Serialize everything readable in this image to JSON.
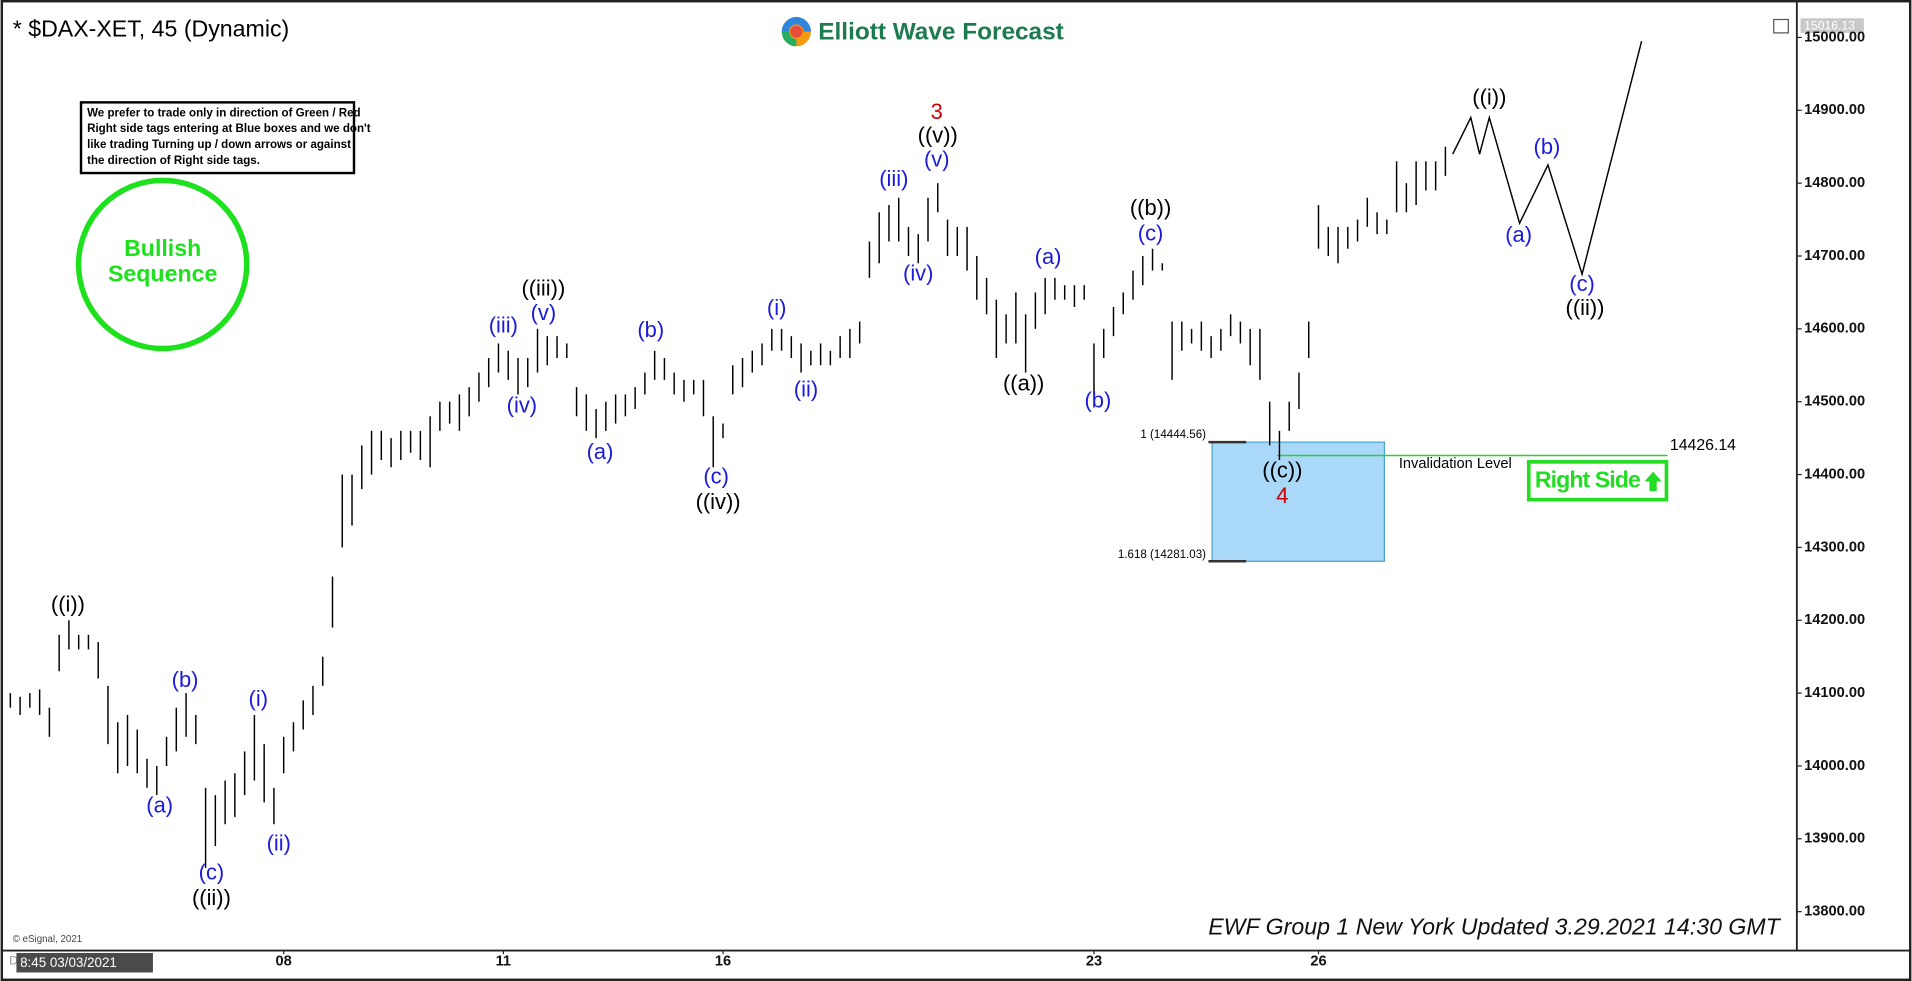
{
  "chart_data": {
    "type": "ohlc",
    "title": "* $DAX-XET, 45 (Dynamic)",
    "logo": "Elliott Wave Forecast",
    "note_lines": [
      "We prefer to trade only in direction of Green / Red",
      "Right side tags entering at Blue boxes and we don't",
      "like trading Turning up / down arrows or against",
      "the direction of Right side tags."
    ],
    "badge_lines": [
      "Bullish",
      "Sequence"
    ],
    "right_side": "Right Side",
    "footer": "EWF Group 1 New York Updated 3.29.2021 14:30 GMT",
    "copyright": "© eSignal, 2021",
    "cursor_label": "8:45 03/03/2021",
    "mode_label": "Dyn",
    "last_price": "15016.13",
    "color": "#000000",
    "high": [
      14100,
      14095,
      14100,
      14105,
      14080,
      14180,
      14200,
      14180,
      14180,
      14170,
      14110,
      14060,
      14070,
      14050,
      14010,
      14000,
      14040,
      14080,
      14100,
      14070,
      13970,
      13960,
      13980,
      13990,
      14020,
      14070,
      14030,
      13970,
      14040,
      14060,
      14090,
      14110,
      14150,
      14260,
      14400,
      14400,
      14440,
      14460,
      14460,
      14450,
      14460,
      14460,
      14460,
      14480,
      14500,
      14500,
      14510,
      14520,
      14540,
      14560,
      14580,
      14570,
      14560,
      14560,
      14600,
      14590,
      14590,
      14580,
      14520,
      14510,
      14490,
      14500,
      14510,
      14510,
      14520,
      14540,
      14570,
      14560,
      14540,
      14530,
      14530,
      14530,
      14480,
      14470,
      14550,
      14560,
      14570,
      14580,
      14600,
      14600,
      14590,
      14580,
      14570,
      14580,
      14570,
      14590,
      14600,
      14610,
      14720,
      14760,
      14770,
      14780,
      14740,
      14730,
      14780,
      14800,
      14750,
      14740,
      14740,
      14700,
      14670,
      14640,
      14620,
      14650,
      14620,
      14650,
      14670,
      14670,
      14660,
      14660,
      14660,
      14580,
      14600,
      14630,
      14650,
      14680,
      14700,
      14710,
      14690,
      14610,
      14610,
      14600,
      14610,
      14590,
      14600,
      14620,
      14610,
      14600,
      14600,
      14500,
      14460,
      14500,
      14540,
      14610,
      14770,
      14740,
      14740,
      14740,
      14750,
      14780,
      14760,
      14750,
      14830,
      14800,
      14830,
      14830,
      14830,
      14850
    ],
    "low": [
      14080,
      14070,
      14080,
      14070,
      14040,
      14130,
      14160,
      14160,
      14160,
      14120,
      14030,
      13990,
      14000,
      13990,
      13970,
      13960,
      14000,
      14020,
      14040,
      14030,
      13860,
      13890,
      13920,
      13930,
      13960,
      13980,
      13950,
      13920,
      13990,
      14020,
      14050,
      14070,
      14110,
      14190,
      14300,
      14330,
      14380,
      14400,
      14420,
      14410,
      14420,
      14430,
      14420,
      14410,
      14460,
      14470,
      14460,
      14480,
      14500,
      14520,
      14540,
      14530,
      14510,
      14520,
      14540,
      14550,
      14560,
      14560,
      14480,
      14460,
      14450,
      14460,
      14470,
      14480,
      14490,
      14510,
      14530,
      14530,
      14510,
      14500,
      14510,
      14480,
      14410,
      14450,
      14510,
      14520,
      14540,
      14550,
      14570,
      14570,
      14560,
      14540,
      14550,
      14550,
      14550,
      14560,
      14560,
      14580,
      14670,
      14690,
      14720,
      14720,
      14700,
      14690,
      14720,
      14760,
      14700,
      14700,
      14680,
      14640,
      14620,
      14560,
      14580,
      14580,
      14540,
      14600,
      14620,
      14640,
      14640,
      14630,
      14640,
      14510,
      14560,
      14590,
      14620,
      14640,
      14660,
      14680,
      14680,
      14530,
      14570,
      14580,
      14570,
      14560,
      14570,
      14590,
      14580,
      14550,
      14530,
      14440,
      14420,
      14460,
      14490,
      14560,
      14710,
      14700,
      14690,
      14710,
      14720,
      14740,
      14730,
      14730,
      14760,
      14760,
      14770,
      14790,
      14790,
      14810
    ],
    "projection": {
      "color": "#000000",
      "x": [
        147.75,
        149.6,
        150.5,
        151.5,
        154.6,
        157.5,
        161,
        167.1
      ],
      "values": [
        14840,
        14890,
        14840,
        14890,
        14745,
        14825,
        14675,
        14995
      ]
    },
    "xlim": [
      0,
      183
    ],
    "ylim": [
      13750,
      15028
    ],
    "xticks": [
      {
        "value": 28,
        "label": "08"
      },
      {
        "value": 50.5,
        "label": "11"
      },
      {
        "value": 73,
        "label": "16"
      },
      {
        "value": 111,
        "label": "23"
      },
      {
        "value": 134,
        "label": "26"
      }
    ],
    "yticks": [
      {
        "value": 13800,
        "label": "13800.00"
      },
      {
        "value": 13900,
        "label": "13900.00"
      },
      {
        "value": 14000,
        "label": "14000.00"
      },
      {
        "value": 14100,
        "label": "14100.00"
      },
      {
        "value": 14200,
        "label": "14200.00"
      },
      {
        "value": 14300,
        "label": "14300.00"
      },
      {
        "value": 14400,
        "label": "14400.00"
      },
      {
        "value": 14500,
        "label": "14500.00"
      },
      {
        "value": 14600,
        "label": "14600.00"
      },
      {
        "value": 14700,
        "label": "14700.00"
      },
      {
        "value": 14800,
        "label": "14800.00"
      },
      {
        "value": 14900,
        "label": "14900.00"
      },
      {
        "value": 15000,
        "label": "15000.00"
      }
    ],
    "box": {
      "x": [
        123.1,
        140.75
      ],
      "top": 14444.56,
      "bottom": 14281.03,
      "top_label": "1 (14444.56)",
      "bottom_label": "1.618 (14281.03)",
      "color": "#aad8f8"
    },
    "invalidation": {
      "label": "Invalidation Level",
      "value": 14426.14,
      "x": [
        129.75,
        169.75
      ],
      "color": "#33cc33"
    },
    "annotations": [
      {
        "text": "((i))",
        "x": 5.9,
        "y": 14220,
        "color": "#000000"
      },
      {
        "text": "(a)",
        "x": 15.3,
        "y": 13944,
        "color": "#1a1adc"
      },
      {
        "text": "(b)",
        "x": 17.9,
        "y": 14116,
        "color": "#1a1adc"
      },
      {
        "text": "(c)",
        "x": 20.6,
        "y": 13852,
        "color": "#1a1adc"
      },
      {
        "text": "((ii))",
        "x": 20.6,
        "y": 13817,
        "color": "#000000"
      },
      {
        "text": "(i)",
        "x": 25.4,
        "y": 14090,
        "color": "#1a1adc"
      },
      {
        "text": "(ii)",
        "x": 27.5,
        "y": 13892,
        "color": "#1a1adc"
      },
      {
        "text": "(iii)",
        "x": 50.5,
        "y": 14603,
        "color": "#1a1adc"
      },
      {
        "text": "(iv)",
        "x": 52.4,
        "y": 14493,
        "color": "#1a1adc"
      },
      {
        "text": "(v)",
        "x": 54.6,
        "y": 14620,
        "color": "#1a1adc"
      },
      {
        "text": "((iii))",
        "x": 54.6,
        "y": 14654,
        "color": "#000000"
      },
      {
        "text": "(a)",
        "x": 60.4,
        "y": 14429,
        "color": "#1a1adc"
      },
      {
        "text": "(b)",
        "x": 65.6,
        "y": 14597,
        "color": "#1a1adc"
      },
      {
        "text": "(c)",
        "x": 72.3,
        "y": 14396,
        "color": "#1a1adc"
      },
      {
        "text": "((iv))",
        "x": 72.5,
        "y": 14361,
        "color": "#000000"
      },
      {
        "text": "(i)",
        "x": 78.5,
        "y": 14627,
        "color": "#1a1adc"
      },
      {
        "text": "(ii)",
        "x": 81.5,
        "y": 14515,
        "color": "#1a1adc"
      },
      {
        "text": "(iii)",
        "x": 90.5,
        "y": 14804,
        "color": "#1a1adc"
      },
      {
        "text": "(iv)",
        "x": 93,
        "y": 14674,
        "color": "#1a1adc"
      },
      {
        "text": "(v)",
        "x": 94.9,
        "y": 14831,
        "color": "#1a1adc"
      },
      {
        "text": "((v))",
        "x": 95,
        "y": 14864,
        "color": "#000000"
      },
      {
        "text": "3",
        "x": 94.9,
        "y": 14896,
        "color": "#cc0000"
      },
      {
        "text": "(a)",
        "x": 106.3,
        "y": 14697,
        "color": "#1a1adc"
      },
      {
        "text": "((a))",
        "x": 103.8,
        "y": 14523,
        "color": "#000000"
      },
      {
        "text": "(b)",
        "x": 111.4,
        "y": 14500,
        "color": "#1a1adc"
      },
      {
        "text": "(c)",
        "x": 116.8,
        "y": 14729,
        "color": "#1a1adc"
      },
      {
        "text": "((b))",
        "x": 116.8,
        "y": 14764,
        "color": "#000000"
      },
      {
        "text": "((c))",
        "x": 130.3,
        "y": 14404,
        "color": "#000000"
      },
      {
        "text": "4",
        "x": 130.3,
        "y": 14369,
        "color": "#cc0000"
      },
      {
        "text": "((i))",
        "x": 151.5,
        "y": 14916,
        "color": "#000000"
      },
      {
        "text": "(a)",
        "x": 154.5,
        "y": 14727,
        "color": "#1a1adc"
      },
      {
        "text": "(b)",
        "x": 157.4,
        "y": 14848,
        "color": "#1a1adc"
      },
      {
        "text": "(c)",
        "x": 161,
        "y": 14660,
        "color": "#1a1adc"
      },
      {
        "text": "((ii))",
        "x": 161.3,
        "y": 14627,
        "color": "#000000"
      }
    ]
  }
}
